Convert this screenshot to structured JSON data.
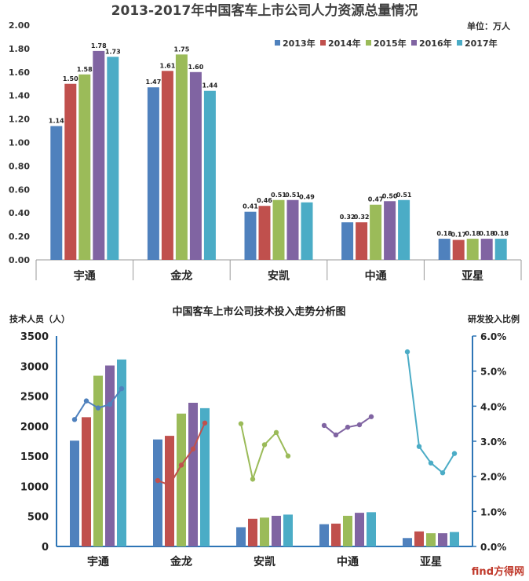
{
  "chart_data": [
    {
      "type": "bar",
      "title": "2013-2017年中国客车上市公司人力资源总量情况",
      "unit_label": "单位：万人",
      "categories": [
        "宇通",
        "金龙",
        "安凯",
        "中通",
        "亚星"
      ],
      "ylim": [
        0,
        2.0
      ],
      "yticks": [
        "0.00",
        "0.20",
        "0.40",
        "0.60",
        "0.80",
        "1.00",
        "1.20",
        "1.40",
        "1.60",
        "1.80",
        "2.00"
      ],
      "legend_position": "top-right",
      "series": [
        {
          "name": "2013年",
          "color": "#4f81bd",
          "values": [
            1.14,
            1.47,
            0.41,
            0.32,
            0.18
          ],
          "labels": [
            "1.14",
            "1.47",
            "0.41",
            "0.32",
            "0.18"
          ]
        },
        {
          "name": "2014年",
          "color": "#c0504d",
          "values": [
            1.5,
            1.61,
            0.46,
            0.32,
            0.17
          ],
          "labels": [
            "1.50",
            "1.61",
            "0.46",
            "0.32",
            "0.17"
          ]
        },
        {
          "name": "2015年",
          "color": "#9bbb59",
          "values": [
            1.58,
            1.75,
            0.51,
            0.47,
            0.18
          ],
          "labels": [
            "1.58",
            "1.75",
            "0.51",
            "0.47",
            "0.18"
          ]
        },
        {
          "name": "2016年",
          "color": "#8064a2",
          "values": [
            1.78,
            1.6,
            0.51,
            0.5,
            0.18
          ],
          "labels": [
            "1.78",
            "1.60",
            "0.51",
            "0.50",
            "0.18"
          ]
        },
        {
          "name": "2017年",
          "color": "#4bacc6",
          "values": [
            1.73,
            1.44,
            0.49,
            0.51,
            0.18
          ],
          "labels": [
            "1.73",
            "1.44",
            "0.49",
            "0.51",
            "0.18"
          ]
        }
      ]
    },
    {
      "type": "bar+line",
      "title": "中国客车上市公司技术投入走势分析图",
      "ylabel_left": "技术人员（人）",
      "ylabel_right": "研发投入比例",
      "categories": [
        "宇通",
        "金龙",
        "安凯",
        "中通",
        "亚星"
      ],
      "ylim_left": [
        0,
        3500
      ],
      "yticks_left": [
        "0",
        "500",
        "1000",
        "1500",
        "2000",
        "2500",
        "3000",
        "3500"
      ],
      "ylim_right": [
        0,
        6.0
      ],
      "yticks_right": [
        "0.0%",
        "1.0%",
        "2.0%",
        "3.0%",
        "4.0%",
        "5.0%",
        "6.0%"
      ],
      "bar_colors": [
        "#4f81bd",
        "#c0504d",
        "#9bbb59",
        "#8064a2",
        "#4bacc6"
      ],
      "bars": [
        [
          1760,
          2150,
          2840,
          3010,
          3110
        ],
        [
          1780,
          1840,
          2210,
          2390,
          2300
        ],
        [
          320,
          460,
          480,
          510,
          530
        ],
        [
          370,
          380,
          510,
          560,
          570
        ],
        [
          140,
          250,
          220,
          220,
          240
        ]
      ],
      "lines": [
        {
          "category": "宇通",
          "color": "#4f81bd",
          "values": [
            3.62,
            4.15,
            3.95,
            4.05,
            4.5
          ]
        },
        {
          "category": "金龙",
          "color": "#c0504d",
          "values": [
            1.88,
            1.75,
            2.32,
            2.78,
            3.52
          ]
        },
        {
          "category": "安凯",
          "color": "#9bbb59",
          "values": [
            3.5,
            1.92,
            2.9,
            3.25,
            2.58
          ]
        },
        {
          "category": "中通",
          "color": "#8064a2",
          "values": [
            3.45,
            3.18,
            3.4,
            3.47,
            3.7
          ]
        },
        {
          "category": "亚星",
          "color": "#4bacc6",
          "values": [
            5.55,
            2.85,
            2.38,
            2.1,
            2.65
          ]
        }
      ]
    }
  ],
  "watermark": "find方得网"
}
